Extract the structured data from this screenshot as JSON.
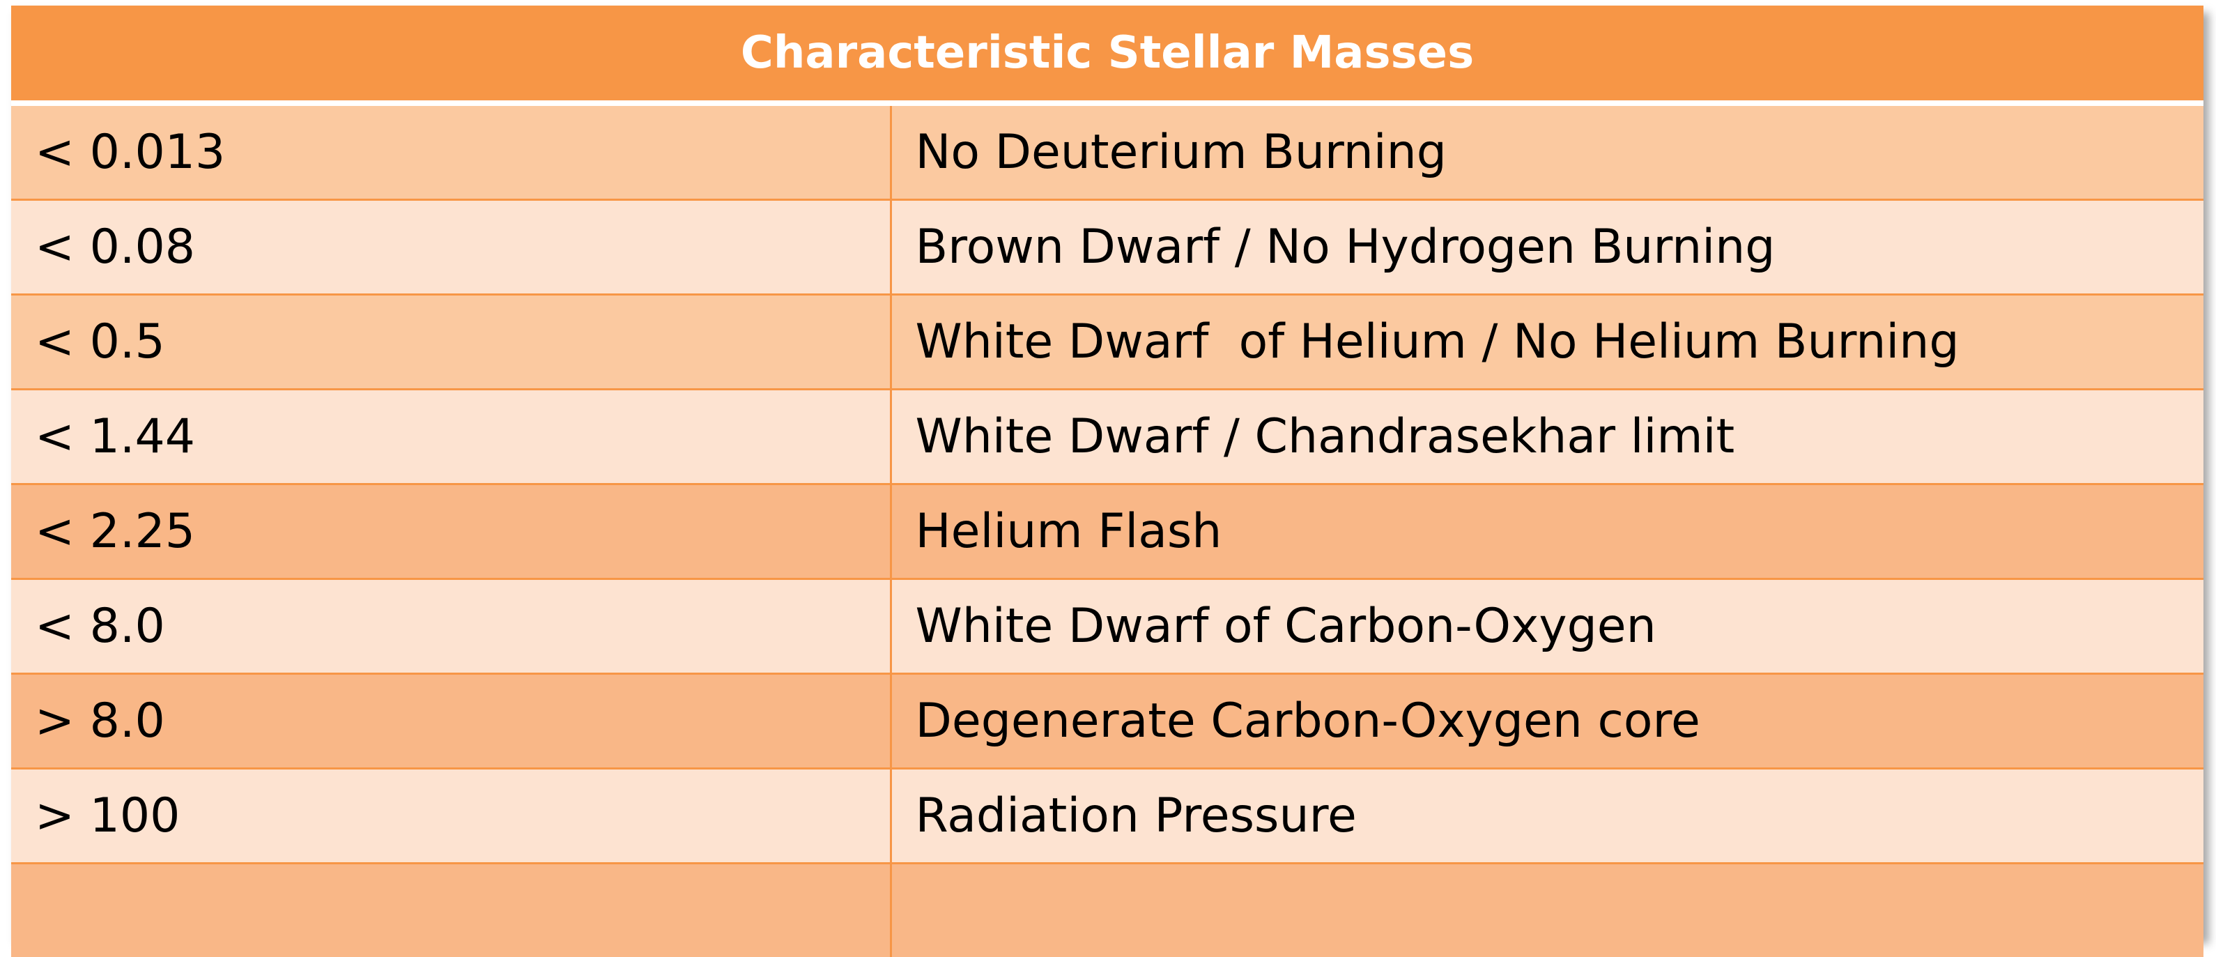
{
  "table": {
    "title": "Characteristic Stellar Masses",
    "rows": [
      {
        "mass": "< 0.013",
        "description": "No Deuterium Burning"
      },
      {
        "mass": "< 0.08",
        "description": "Brown Dwarf / No Hydrogen Burning"
      },
      {
        "mass": "< 0.5",
        "description": "White Dwarf  of Helium / No Helium Burning"
      },
      {
        "mass": "< 1.44",
        "description": "White Dwarf / Chandrasekhar limit"
      },
      {
        "mass": "< 2.25",
        "description": "Helium Flash"
      },
      {
        "mass": "< 8.0",
        "description": "White Dwarf of Carbon-Oxygen"
      },
      {
        "mass": "> 8.0",
        "description": "Degenerate Carbon-Oxygen core"
      },
      {
        "mass": "> 100",
        "description": "Radiation Pressure"
      },
      {
        "mass": "",
        "description": ""
      }
    ],
    "colors": {
      "header": "#f79646",
      "row_dark": "#fbc9a0",
      "row_light": "#fde3d1",
      "border": "#f79646"
    }
  }
}
